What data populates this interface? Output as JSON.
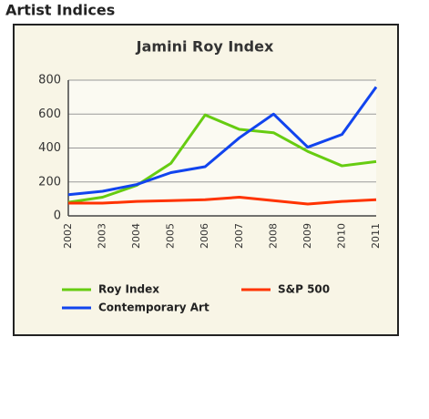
{
  "header": {
    "title": "Artist Indices"
  },
  "chart_data": {
    "type": "line",
    "title": "Jamini Roy Index",
    "categories": [
      "2002",
      "2003",
      "2004",
      "2005",
      "2006",
      "2007",
      "2008",
      "2009",
      "2010",
      "2011"
    ],
    "series": [
      {
        "name": "Roy Index",
        "color": "#66cc11",
        "values": [
          80,
          110,
          180,
          310,
          595,
          510,
          490,
          380,
          295,
          320
        ]
      },
      {
        "name": "S&P 500",
        "color": "#ff3300",
        "values": [
          75,
          75,
          85,
          90,
          95,
          110,
          90,
          70,
          85,
          95
        ]
      },
      {
        "name": "Contemporary Art",
        "color": "#1144ee",
        "values": [
          125,
          145,
          185,
          255,
          290,
          460,
          600,
          405,
          480,
          760
        ]
      }
    ],
    "ylim": [
      0,
      800
    ],
    "yticks": [
      0,
      200,
      400,
      600,
      800
    ],
    "grid": true
  }
}
